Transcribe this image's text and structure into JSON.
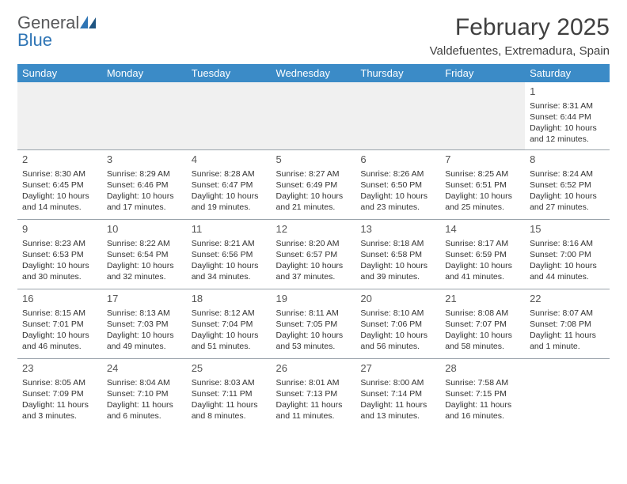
{
  "logo": {
    "line1": "General",
    "line2": "Blue"
  },
  "title": "February 2025",
  "location": "Valdefuentes, Extremadura, Spain",
  "colors": {
    "header_bg": "#3b8bc7",
    "header_text": "#ffffff",
    "border": "#9aa3ab",
    "logo_gray": "#58595b",
    "logo_blue": "#2f75b5",
    "empty_bg": "#f0f0f0"
  },
  "weekdays": [
    "Sunday",
    "Monday",
    "Tuesday",
    "Wednesday",
    "Thursday",
    "Friday",
    "Saturday"
  ],
  "weeks": [
    [
      null,
      null,
      null,
      null,
      null,
      null,
      {
        "n": "1",
        "sr": "Sunrise: 8:31 AM",
        "ss": "Sunset: 6:44 PM",
        "d1": "Daylight: 10 hours",
        "d2": "and 12 minutes."
      }
    ],
    [
      {
        "n": "2",
        "sr": "Sunrise: 8:30 AM",
        "ss": "Sunset: 6:45 PM",
        "d1": "Daylight: 10 hours",
        "d2": "and 14 minutes."
      },
      {
        "n": "3",
        "sr": "Sunrise: 8:29 AM",
        "ss": "Sunset: 6:46 PM",
        "d1": "Daylight: 10 hours",
        "d2": "and 17 minutes."
      },
      {
        "n": "4",
        "sr": "Sunrise: 8:28 AM",
        "ss": "Sunset: 6:47 PM",
        "d1": "Daylight: 10 hours",
        "d2": "and 19 minutes."
      },
      {
        "n": "5",
        "sr": "Sunrise: 8:27 AM",
        "ss": "Sunset: 6:49 PM",
        "d1": "Daylight: 10 hours",
        "d2": "and 21 minutes."
      },
      {
        "n": "6",
        "sr": "Sunrise: 8:26 AM",
        "ss": "Sunset: 6:50 PM",
        "d1": "Daylight: 10 hours",
        "d2": "and 23 minutes."
      },
      {
        "n": "7",
        "sr": "Sunrise: 8:25 AM",
        "ss": "Sunset: 6:51 PM",
        "d1": "Daylight: 10 hours",
        "d2": "and 25 minutes."
      },
      {
        "n": "8",
        "sr": "Sunrise: 8:24 AM",
        "ss": "Sunset: 6:52 PM",
        "d1": "Daylight: 10 hours",
        "d2": "and 27 minutes."
      }
    ],
    [
      {
        "n": "9",
        "sr": "Sunrise: 8:23 AM",
        "ss": "Sunset: 6:53 PM",
        "d1": "Daylight: 10 hours",
        "d2": "and 30 minutes."
      },
      {
        "n": "10",
        "sr": "Sunrise: 8:22 AM",
        "ss": "Sunset: 6:54 PM",
        "d1": "Daylight: 10 hours",
        "d2": "and 32 minutes."
      },
      {
        "n": "11",
        "sr": "Sunrise: 8:21 AM",
        "ss": "Sunset: 6:56 PM",
        "d1": "Daylight: 10 hours",
        "d2": "and 34 minutes."
      },
      {
        "n": "12",
        "sr": "Sunrise: 8:20 AM",
        "ss": "Sunset: 6:57 PM",
        "d1": "Daylight: 10 hours",
        "d2": "and 37 minutes."
      },
      {
        "n": "13",
        "sr": "Sunrise: 8:18 AM",
        "ss": "Sunset: 6:58 PM",
        "d1": "Daylight: 10 hours",
        "d2": "and 39 minutes."
      },
      {
        "n": "14",
        "sr": "Sunrise: 8:17 AM",
        "ss": "Sunset: 6:59 PM",
        "d1": "Daylight: 10 hours",
        "d2": "and 41 minutes."
      },
      {
        "n": "15",
        "sr": "Sunrise: 8:16 AM",
        "ss": "Sunset: 7:00 PM",
        "d1": "Daylight: 10 hours",
        "d2": "and 44 minutes."
      }
    ],
    [
      {
        "n": "16",
        "sr": "Sunrise: 8:15 AM",
        "ss": "Sunset: 7:01 PM",
        "d1": "Daylight: 10 hours",
        "d2": "and 46 minutes."
      },
      {
        "n": "17",
        "sr": "Sunrise: 8:13 AM",
        "ss": "Sunset: 7:03 PM",
        "d1": "Daylight: 10 hours",
        "d2": "and 49 minutes."
      },
      {
        "n": "18",
        "sr": "Sunrise: 8:12 AM",
        "ss": "Sunset: 7:04 PM",
        "d1": "Daylight: 10 hours",
        "d2": "and 51 minutes."
      },
      {
        "n": "19",
        "sr": "Sunrise: 8:11 AM",
        "ss": "Sunset: 7:05 PM",
        "d1": "Daylight: 10 hours",
        "d2": "and 53 minutes."
      },
      {
        "n": "20",
        "sr": "Sunrise: 8:10 AM",
        "ss": "Sunset: 7:06 PM",
        "d1": "Daylight: 10 hours",
        "d2": "and 56 minutes."
      },
      {
        "n": "21",
        "sr": "Sunrise: 8:08 AM",
        "ss": "Sunset: 7:07 PM",
        "d1": "Daylight: 10 hours",
        "d2": "and 58 minutes."
      },
      {
        "n": "22",
        "sr": "Sunrise: 8:07 AM",
        "ss": "Sunset: 7:08 PM",
        "d1": "Daylight: 11 hours",
        "d2": "and 1 minute."
      }
    ],
    [
      {
        "n": "23",
        "sr": "Sunrise: 8:05 AM",
        "ss": "Sunset: 7:09 PM",
        "d1": "Daylight: 11 hours",
        "d2": "and 3 minutes."
      },
      {
        "n": "24",
        "sr": "Sunrise: 8:04 AM",
        "ss": "Sunset: 7:10 PM",
        "d1": "Daylight: 11 hours",
        "d2": "and 6 minutes."
      },
      {
        "n": "25",
        "sr": "Sunrise: 8:03 AM",
        "ss": "Sunset: 7:11 PM",
        "d1": "Daylight: 11 hours",
        "d2": "and 8 minutes."
      },
      {
        "n": "26",
        "sr": "Sunrise: 8:01 AM",
        "ss": "Sunset: 7:13 PM",
        "d1": "Daylight: 11 hours",
        "d2": "and 11 minutes."
      },
      {
        "n": "27",
        "sr": "Sunrise: 8:00 AM",
        "ss": "Sunset: 7:14 PM",
        "d1": "Daylight: 11 hours",
        "d2": "and 13 minutes."
      },
      {
        "n": "28",
        "sr": "Sunrise: 7:58 AM",
        "ss": "Sunset: 7:15 PM",
        "d1": "Daylight: 11 hours",
        "d2": "and 16 minutes."
      },
      null
    ]
  ]
}
